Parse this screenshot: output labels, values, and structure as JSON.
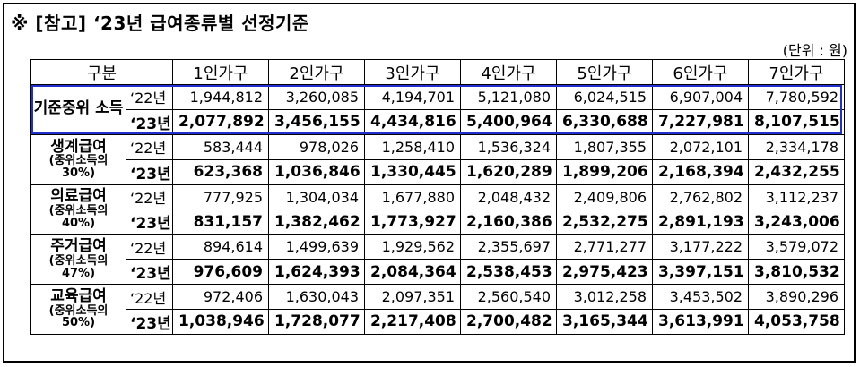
{
  "title": "※ [참고] ‘23년 급여종류별 선정기준",
  "unit": "(단위 : 원)",
  "header": {
    "category": "구분",
    "columns": [
      "1인가구",
      "2인가구",
      "3인가구",
      "4인가구",
      "5인가구",
      "6인가구",
      "7인가구"
    ]
  },
  "sections": [
    {
      "name": "기준중위 소득",
      "sub": "",
      "rows": [
        {
          "year": "‘22년",
          "values": [
            "1,944,812",
            "3,260,085",
            "4,194,701",
            "5,121,080",
            "6,024,515",
            "6,907,004",
            "7,780,592"
          ]
        },
        {
          "year": "‘23년",
          "values": [
            "2,077,892",
            "3,456,155",
            "4,434,816",
            "5,400,964",
            "6,330,688",
            "7,227,981",
            "8,107,515"
          ]
        }
      ]
    },
    {
      "name": "생계급여",
      "sub": "(중위소득의 30%)",
      "rows": [
        {
          "year": "‘22년",
          "values": [
            "583,444",
            "978,026",
            "1,258,410",
            "1,536,324",
            "1,807,355",
            "2,072,101",
            "2,334,178"
          ]
        },
        {
          "year": "‘23년",
          "values": [
            "623,368",
            "1,036,846",
            "1,330,445",
            "1,620,289",
            "1,899,206",
            "2,168,394",
            "2,432,255"
          ]
        }
      ]
    },
    {
      "name": "의료급여",
      "sub": "(중위소득의 40%)",
      "rows": [
        {
          "year": "‘22년",
          "values": [
            "777,925",
            "1,304,034",
            "1,677,880",
            "2,048,432",
            "2,409,806",
            "2,762,802",
            "3,112,237"
          ]
        },
        {
          "year": "‘23년",
          "values": [
            "831,157",
            "1,382,462",
            "1,773,927",
            "2,160,386",
            "2,532,275",
            "2,891,193",
            "3,243,006"
          ]
        }
      ]
    },
    {
      "name": "주거급여",
      "sub": "(중위소득의 47%)",
      "rows": [
        {
          "year": "‘22년",
          "values": [
            "894,614",
            "1,499,639",
            "1,929,562",
            "2,355,697",
            "2,771,277",
            "3,177,222",
            "3,579,072"
          ]
        },
        {
          "year": "‘23년",
          "values": [
            "976,609",
            "1,624,393",
            "2,084,364",
            "2,538,453",
            "2,975,423",
            "3,397,151",
            "3,810,532"
          ]
        }
      ]
    },
    {
      "name": "교육급여",
      "sub": "(중위소득의 50%)",
      "rows": [
        {
          "year": "‘22년",
          "values": [
            "972,406",
            "1,630,043",
            "2,097,351",
            "2,560,540",
            "3,012,258",
            "3,453,502",
            "3,890,296"
          ]
        },
        {
          "year": "‘23년",
          "values": [
            "1,038,946",
            "1,728,077",
            "2,217,408",
            "2,700,482",
            "3,165,344",
            "3,613,991",
            "4,053,758"
          ]
        }
      ]
    }
  ],
  "colors": {
    "highlight_border": "#2030d0",
    "border": "#000000"
  }
}
